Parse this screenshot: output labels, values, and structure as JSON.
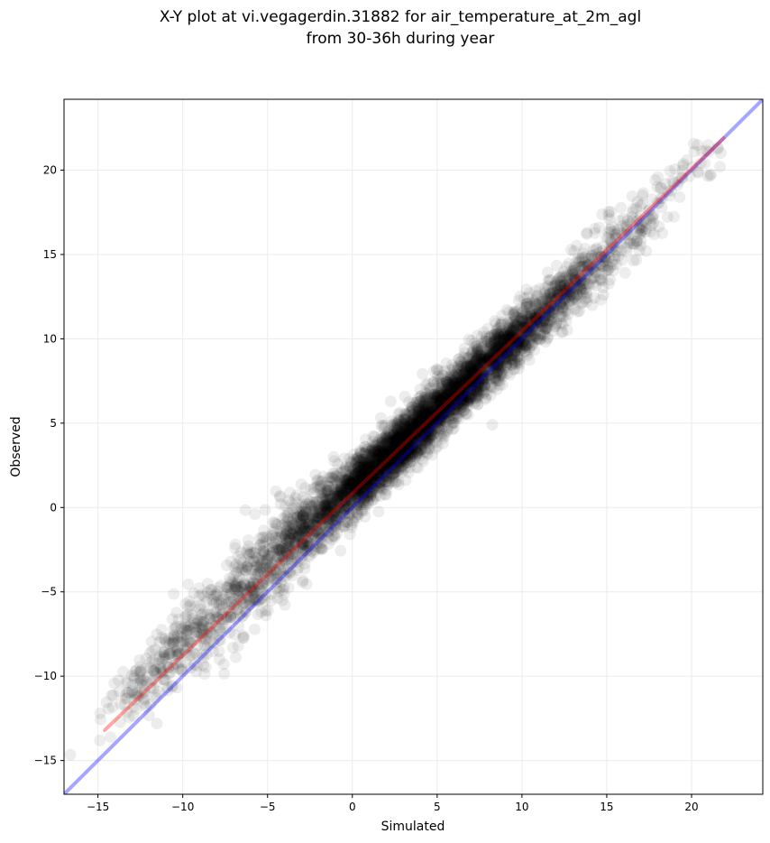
{
  "chart_data": {
    "type": "scatter",
    "title": "X-Y plot at vi.vegagerdin.31882 for air_temperature_at_2m_agl",
    "subtitle": "from 30-36h during year",
    "xlabel": "Simulated",
    "ylabel": "Observed",
    "xlim": [
      -17,
      24.2
    ],
    "ylim": [
      -17,
      24.2
    ],
    "x_ticks": [
      -15,
      -10,
      -5,
      0,
      5,
      10,
      15,
      20
    ],
    "y_ticks": [
      -15,
      -10,
      -5,
      0,
      5,
      10,
      15,
      20
    ],
    "x_tick_labels": [
      "−15",
      "−10",
      "−5",
      "0",
      "5",
      "10",
      "15",
      "20"
    ],
    "y_tick_labels": [
      "−15",
      "−10",
      "−5",
      "0",
      "5",
      "10",
      "15",
      "20"
    ],
    "grid": true,
    "point_color": "#000000",
    "point_opacity": 0.07,
    "reference_line": {
      "color": "#0000ff",
      "x": [
        -17,
        24.2
      ],
      "y": [
        -17,
        24.2
      ]
    },
    "fit_line": {
      "color": "#ff0000",
      "x": [
        -14.6,
        21.9
      ],
      "y": [
        -13.2,
        21.9
      ]
    },
    "point_clusters": [
      {
        "cx": -13.0,
        "cy": -11.0,
        "sx": 0.9,
        "sy": 1.4,
        "n": 60
      },
      {
        "cx": -10.0,
        "cy": -8.0,
        "sx": 1.4,
        "sy": 2.0,
        "n": 220
      },
      {
        "cx": -6.0,
        "cy": -4.5,
        "sx": 1.5,
        "sy": 2.2,
        "n": 360
      },
      {
        "cx": -2.5,
        "cy": -1.0,
        "sx": 1.3,
        "sy": 1.9,
        "n": 450
      },
      {
        "cx": 0.5,
        "cy": 1.6,
        "sx": 1.2,
        "sy": 1.6,
        "n": 750
      },
      {
        "cx": 3.0,
        "cy": 3.8,
        "sx": 1.3,
        "sy": 1.5,
        "n": 1050
      },
      {
        "cx": 6.0,
        "cy": 6.7,
        "sx": 1.4,
        "sy": 1.5,
        "n": 950
      },
      {
        "cx": 9.0,
        "cy": 9.5,
        "sx": 1.3,
        "sy": 1.5,
        "n": 750
      },
      {
        "cx": 12.5,
        "cy": 12.7,
        "sx": 1.3,
        "sy": 1.5,
        "n": 380
      },
      {
        "cx": 16.0,
        "cy": 16.0,
        "sx": 1.5,
        "sy": 1.8,
        "n": 160
      },
      {
        "cx": 19.5,
        "cy": 19.5,
        "sx": 1.2,
        "sy": 1.5,
        "n": 35
      }
    ]
  }
}
